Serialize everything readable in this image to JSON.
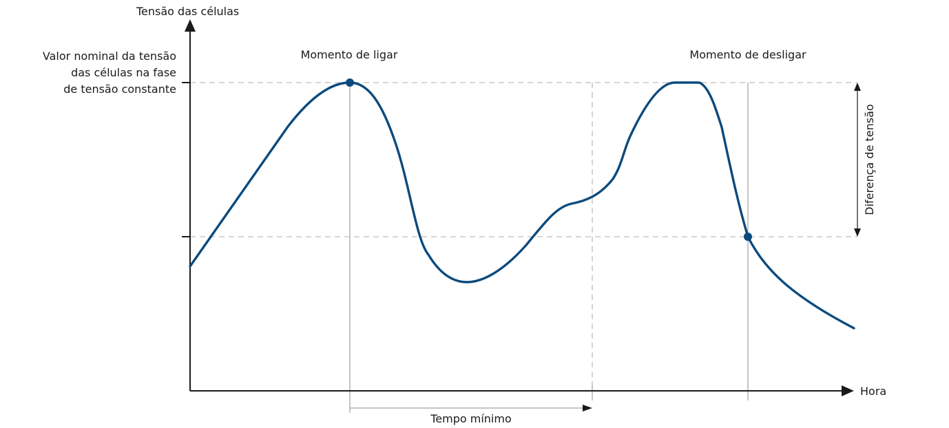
{
  "labels": {
    "y_axis": "Tensão das células",
    "x_axis": "Hora",
    "nominal_line1": "Valor nominal da tensão",
    "nominal_line2": "das células na fase",
    "nominal_line3": "de tensão constante",
    "switch_on": "Momento de ligar",
    "switch_off": "Momento de desligar",
    "min_time": "Tempo mínimo",
    "voltage_difference": "Diferença de tensão"
  },
  "colors": {
    "curve": "#0b4a7e",
    "axis": "#1a1a1a",
    "guide_dashed": "#bdbdbd",
    "guide_thin": "#8c8c8c"
  }
}
